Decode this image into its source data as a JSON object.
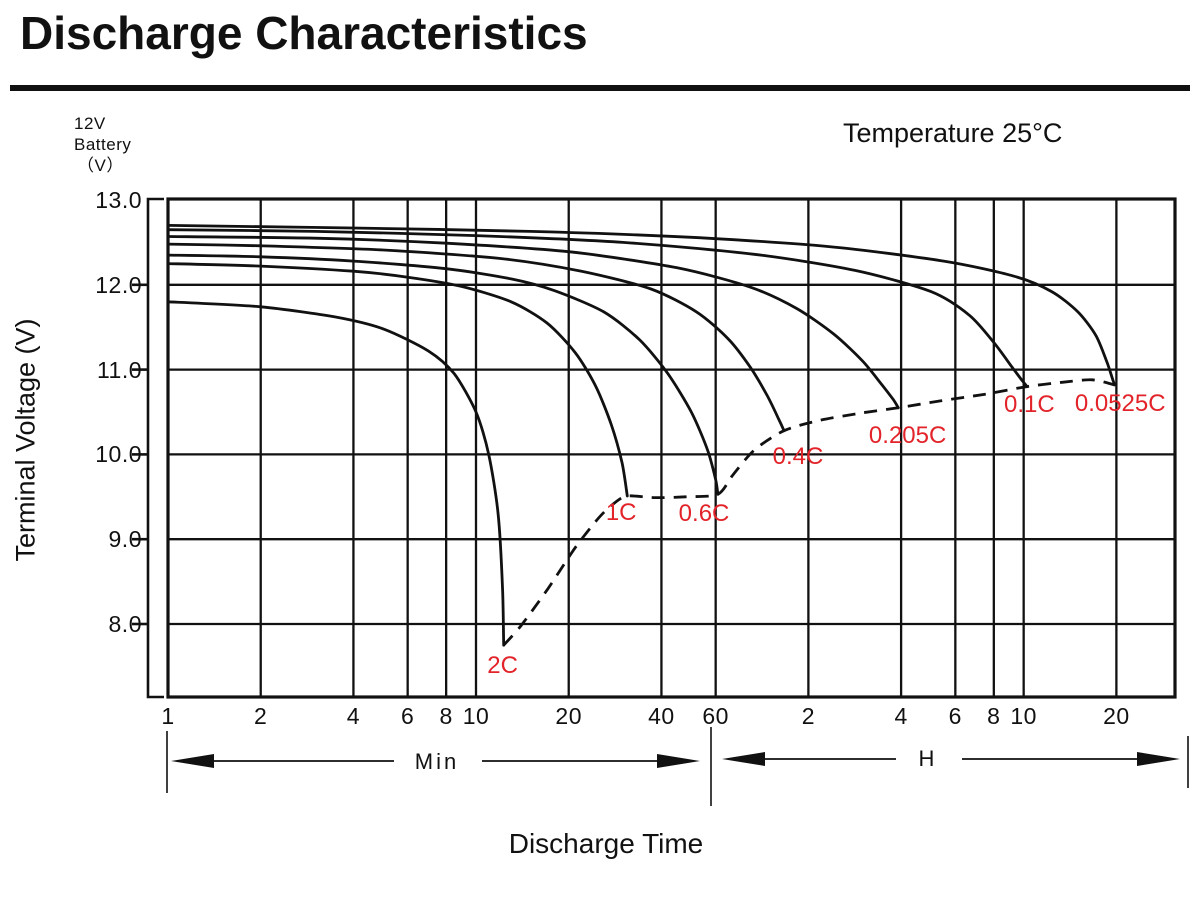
{
  "header": {
    "title": "Discharge Characteristics"
  },
  "chart": {
    "unit_label_lines": [
      "12V",
      "Battery",
      "（V）"
    ],
    "temperature": "Temperature 25°C",
    "y_axis_title": "Terminal Voltage (V)",
    "x_axis_title": "Discharge Time",
    "range_min_label": "Min",
    "range_h_label": "H",
    "colors": {
      "line": "#111111",
      "curve_label": "#e2242a"
    }
  },
  "chart_data": {
    "type": "line",
    "title": "Discharge Characteristics",
    "subtitle": "Temperature 25°C",
    "x_axis": {
      "scale": "log",
      "label": "Discharge Time",
      "xlim_minutes": [
        1,
        1860
      ],
      "min_region_ticks": [
        {
          "label": "1",
          "t": 1
        },
        {
          "label": "2",
          "t": 2
        },
        {
          "label": "4",
          "t": 4
        },
        {
          "label": "6",
          "t": 6
        },
        {
          "label": "8",
          "t": 8
        },
        {
          "label": "10",
          "t": 10
        },
        {
          "label": "20",
          "t": 20
        },
        {
          "label": "40",
          "t": 40
        },
        {
          "label": "60",
          "t": 60
        }
      ],
      "h_region_ticks": [
        {
          "label": "2",
          "t": 120
        },
        {
          "label": "4",
          "t": 240
        },
        {
          "label": "6",
          "t": 360
        },
        {
          "label": "8",
          "t": 480
        },
        {
          "label": "10",
          "t": 600
        },
        {
          "label": "20",
          "t": 1200
        }
      ]
    },
    "y_axis": {
      "label": "Terminal Voltage (V)",
      "ticks": [
        "13.0",
        "12.0",
        "11.0",
        "10.0",
        "9.0",
        "8.0"
      ],
      "tick_values": [
        13.0,
        12.0,
        11.0,
        10.0,
        9.0,
        8.0
      ],
      "ylim": [
        7.15,
        13.0
      ],
      "grid": true
    },
    "series": [
      {
        "name": "0.0525C",
        "label_anchor": [
          1235,
          10.6
        ],
        "points": [
          [
            1,
            12.7
          ],
          [
            4,
            12.67
          ],
          [
            15,
            12.63
          ],
          [
            50,
            12.56
          ],
          [
            140,
            12.45
          ],
          [
            330,
            12.28
          ],
          [
            560,
            12.1
          ],
          [
            740,
            11.92
          ],
          [
            900,
            11.68
          ],
          [
            1030,
            11.4
          ],
          [
            1120,
            11.08
          ],
          [
            1168,
            10.88
          ],
          [
            1185,
            10.82
          ]
        ]
      },
      {
        "name": "0.1C",
        "label_anchor": [
          626,
          10.58
        ],
        "points": [
          [
            1,
            12.65
          ],
          [
            3,
            12.63
          ],
          [
            10,
            12.58
          ],
          [
            30,
            12.5
          ],
          [
            80,
            12.36
          ],
          [
            170,
            12.17
          ],
          [
            300,
            11.92
          ],
          [
            400,
            11.64
          ],
          [
            480,
            11.32
          ],
          [
            545,
            11.05
          ],
          [
            585,
            10.9
          ],
          [
            615,
            10.8
          ]
        ]
      },
      {
        "name": "0.205C",
        "label_anchor": [
          252,
          10.22
        ],
        "points": [
          [
            1,
            12.57
          ],
          [
            3,
            12.55
          ],
          [
            8,
            12.49
          ],
          [
            20,
            12.39
          ],
          [
            45,
            12.2
          ],
          [
            78,
            11.97
          ],
          [
            110,
            11.72
          ],
          [
            145,
            11.42
          ],
          [
            180,
            11.1
          ],
          [
            208,
            10.82
          ],
          [
            227,
            10.64
          ],
          [
            235,
            10.55
          ]
        ]
      },
      {
        "name": "0.4C",
        "label_anchor": [
          111,
          9.97
        ],
        "points": [
          [
            1,
            12.48
          ],
          [
            2,
            12.46
          ],
          [
            5,
            12.41
          ],
          [
            12,
            12.31
          ],
          [
            22,
            12.16
          ],
          [
            37,
            11.95
          ],
          [
            52,
            11.68
          ],
          [
            66,
            11.36
          ],
          [
            78,
            11.02
          ],
          [
            88,
            10.7
          ],
          [
            96,
            10.42
          ],
          [
            100,
            10.28
          ]
        ]
      },
      {
        "name": "0.6C",
        "label_anchor": [
          55,
          9.3
        ],
        "points": [
          [
            1,
            12.35
          ],
          [
            2,
            12.33
          ],
          [
            4,
            12.28
          ],
          [
            8,
            12.19
          ],
          [
            13,
            12.07
          ],
          [
            18,
            11.93
          ],
          [
            26,
            11.68
          ],
          [
            34,
            11.35
          ],
          [
            42,
            10.95
          ],
          [
            50,
            10.5
          ],
          [
            56.5,
            10.05
          ],
          [
            60,
            9.7
          ],
          [
            61,
            9.53
          ]
        ]
      },
      {
        "name": "1C",
        "label_anchor": [
          29.6,
          9.31
        ],
        "points": [
          [
            1,
            12.25
          ],
          [
            2,
            12.22
          ],
          [
            4,
            12.16
          ],
          [
            6,
            12.09
          ],
          [
            9,
            11.98
          ],
          [
            13,
            11.8
          ],
          [
            17,
            11.55
          ],
          [
            21,
            11.2
          ],
          [
            24.5,
            10.8
          ],
          [
            27.5,
            10.35
          ],
          [
            29.8,
            9.9
          ],
          [
            31,
            9.51
          ]
        ]
      },
      {
        "name": "2C",
        "label_anchor": [
          12.2,
          7.5
        ],
        "points": [
          [
            1,
            11.8
          ],
          [
            2,
            11.74
          ],
          [
            3.5,
            11.62
          ],
          [
            5,
            11.48
          ],
          [
            7,
            11.22
          ],
          [
            8.5,
            10.95
          ],
          [
            10,
            10.5
          ],
          [
            11,
            10.0
          ],
          [
            11.8,
            9.3
          ],
          [
            12.2,
            8.4
          ],
          [
            12.3,
            7.75
          ]
        ]
      }
    ],
    "cutoff_locus": {
      "style": "dashed",
      "points": [
        [
          12.3,
          7.75
        ],
        [
          14,
          7.98
        ],
        [
          17,
          8.4
        ],
        [
          21,
          8.9
        ],
        [
          25,
          9.25
        ],
        [
          28,
          9.42
        ],
        [
          31,
          9.51
        ],
        [
          38,
          9.49
        ],
        [
          48,
          9.5
        ],
        [
          61,
          9.53
        ],
        [
          68,
          9.75
        ],
        [
          80,
          10.05
        ],
        [
          100,
          10.28
        ],
        [
          130,
          10.4
        ],
        [
          180,
          10.49
        ],
        [
          235,
          10.55
        ],
        [
          320,
          10.63
        ],
        [
          450,
          10.71
        ],
        [
          615,
          10.8
        ],
        [
          800,
          10.85
        ],
        [
          1000,
          10.88
        ],
        [
          1185,
          10.82
        ]
      ]
    },
    "legend_position": "inline-curve-labels"
  }
}
